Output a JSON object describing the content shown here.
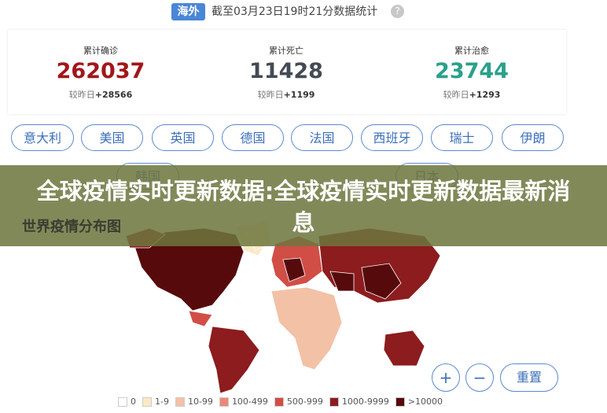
{
  "header": {
    "badge": "海外",
    "timestamp": "截至03月23日19时21分数据统计",
    "help": "?"
  },
  "stats": [
    {
      "label": "累计确诊",
      "value": 262037,
      "compare": "较昨日",
      "delta": "+28566",
      "color": "#a0171b"
    },
    {
      "label": "累计死亡",
      "value": 11428,
      "compare": "较昨日",
      "delta": "+1199",
      "color": "#444a55"
    },
    {
      "label": "累计治愈",
      "value": 23744,
      "compare": "较昨日",
      "delta": "+1293",
      "color": "#2aa08a"
    }
  ],
  "countries": [
    "意大利",
    "美国",
    "英国",
    "德国",
    "法国",
    "西班牙",
    "瑞士",
    "伊朗",
    "韩国",
    "日本"
  ],
  "banner": "全球疫情实时更新数据:全球疫情实时更新数据最新消息",
  "map": {
    "title": "世界疫情分布图",
    "zoom_in": "+",
    "zoom_out": "−",
    "reset": "重置",
    "legend": [
      {
        "label": "0",
        "color": "#ffffff"
      },
      {
        "label": "1-9",
        "color": "#fbe9c6"
      },
      {
        "label": "10-99",
        "color": "#f3c1a6"
      },
      {
        "label": "100-499",
        "color": "#e98a77"
      },
      {
        "label": "500-999",
        "color": "#d04e46"
      },
      {
        "label": "1000-9999",
        "color": "#8c1c1e"
      },
      {
        "label": ">10000",
        "color": "#560a0c"
      }
    ]
  }
}
